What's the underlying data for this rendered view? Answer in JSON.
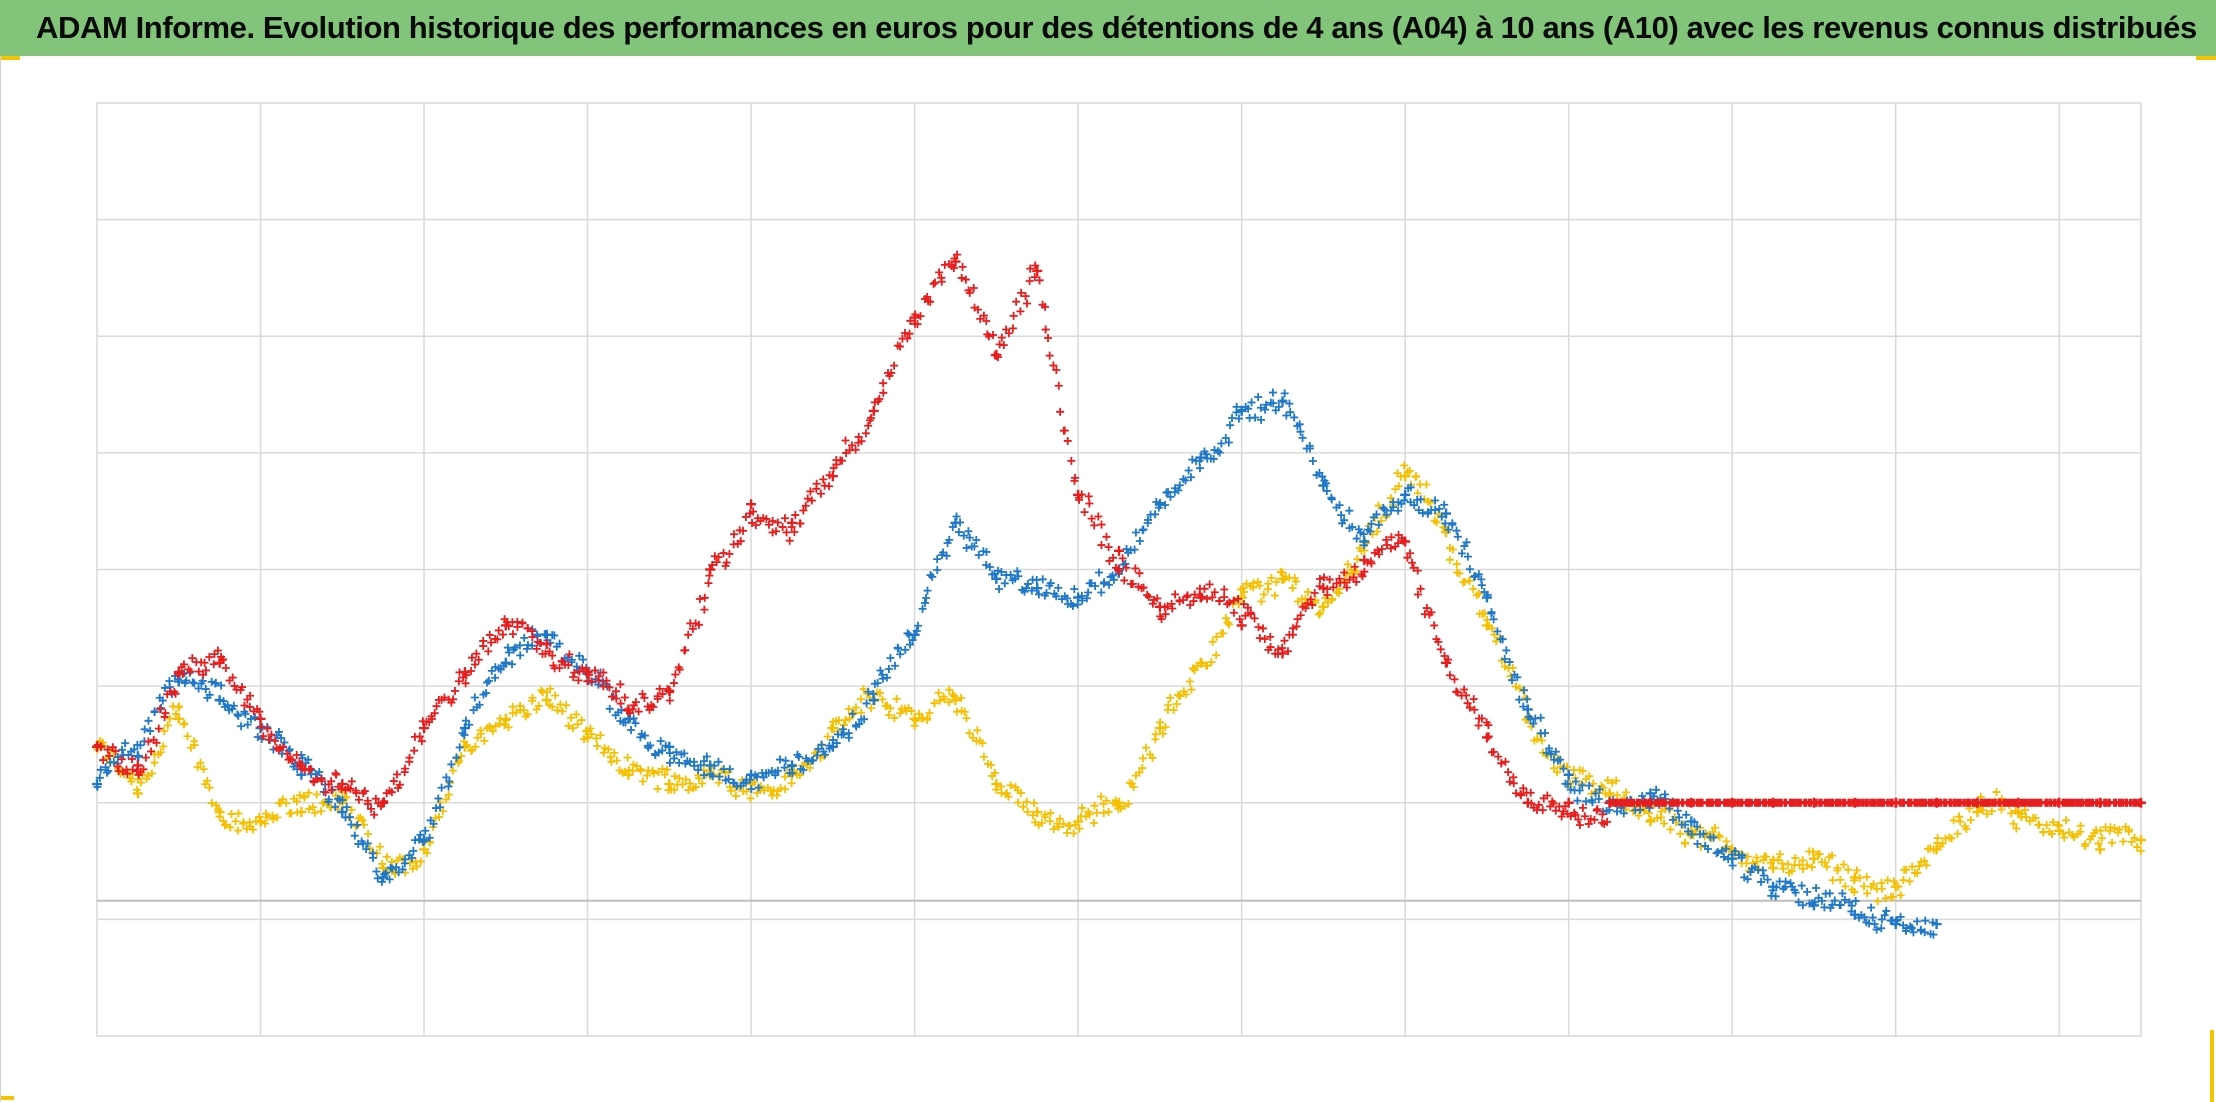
{
  "title": "ADAM Informe. Evolution historique des performances en euros pour des détentions de 4 ans (A04) à 10 ans (A10) avec les revenus connus distribués",
  "colors": {
    "title_background": "#82c57a",
    "grid": "#d9d9d9",
    "baseline": "#bfbfbf",
    "corner_marks": "#f5c400"
  },
  "chart_data": {
    "type": "scatter",
    "marker": "plus",
    "x_range": [
      0,
      100
    ],
    "y_range": [
      0,
      100
    ],
    "grid": true,
    "legend": "none",
    "axis_labels_visible": false,
    "baseline_y": 14.5,
    "series": [
      {
        "color": "#f5c000",
        "x": [
          0,
          2,
          4,
          6,
          8,
          10,
          12,
          14,
          16,
          18,
          20,
          22,
          24,
          26,
          28,
          30,
          32,
          34,
          36,
          38,
          40,
          42,
          44,
          46,
          48,
          50,
          52,
          54,
          56,
          58,
          60,
          62,
          64,
          66,
          68,
          70,
          72,
          74,
          76,
          78,
          80,
          82,
          84,
          86,
          88,
          90,
          92,
          94,
          96,
          98,
          100
        ],
        "y": [
          31,
          26,
          34,
          24,
          23,
          24,
          25,
          18,
          20,
          31,
          34,
          36,
          32,
          28,
          27,
          28,
          27,
          28,
          33,
          36,
          34,
          36,
          27,
          24,
          23,
          25,
          33,
          40,
          47,
          49,
          46,
          53,
          60,
          54,
          44,
          34,
          28,
          26,
          23,
          22,
          20,
          18,
          19,
          17,
          16,
          20,
          24,
          24,
          22,
          20,
          21
        ]
      },
      {
        "color": "#1f78c8",
        "x": [
          0,
          2,
          4,
          6,
          8,
          10,
          12,
          14,
          16,
          18,
          20,
          22,
          24,
          26,
          28,
          30,
          32,
          34,
          36,
          38,
          40,
          42,
          44,
          46,
          48,
          50,
          52,
          54,
          56,
          58,
          60,
          62,
          64,
          66,
          68,
          70,
          72,
          74,
          76,
          78,
          80,
          82,
          84,
          86,
          88,
          90
        ],
        "y": [
          27,
          30,
          38,
          36,
          33,
          28,
          24,
          17,
          21,
          33,
          40,
          43,
          39,
          34,
          31,
          29,
          28,
          29,
          31,
          36,
          43,
          55,
          49,
          48,
          47,
          50,
          57,
          62,
          67,
          68,
          59,
          53,
          58,
          56,
          47,
          35,
          28,
          25,
          26,
          23,
          19,
          16,
          14,
          13,
          12,
          12
        ]
      },
      {
        "color": "#e81d1d",
        "x": [
          0,
          2,
          4,
          6,
          8,
          10,
          12,
          14,
          16,
          18,
          20,
          22,
          24,
          26,
          28,
          30,
          32,
          34,
          36,
          38,
          40,
          42,
          44,
          46,
          48,
          50,
          52,
          54,
          56,
          58,
          60,
          62,
          64,
          66,
          68,
          70,
          72,
          74,
          76,
          78,
          80,
          82,
          84,
          86,
          88,
          90,
          92,
          94,
          96,
          98,
          100
        ],
        "y": [
          31,
          29,
          39,
          40,
          34,
          29,
          27,
          25,
          33,
          39,
          44,
          42,
          39,
          35,
          37,
          50,
          57,
          55,
          60,
          67,
          77,
          83,
          73,
          82,
          58,
          52,
          46,
          47,
          44,
          41,
          48,
          51,
          53,
          40,
          32,
          25,
          25,
          25,
          25,
          25,
          25,
          25,
          25,
          25,
          25,
          25,
          25,
          25,
          25,
          25,
          25
        ]
      }
    ]
  }
}
